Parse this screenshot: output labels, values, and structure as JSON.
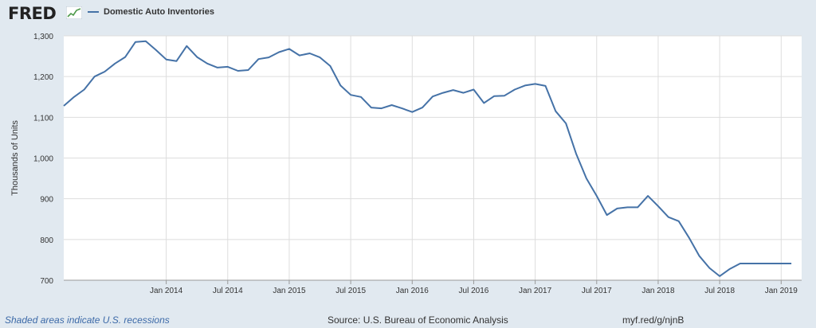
{
  "header": {
    "logo_text": "FRED",
    "logo_icon": "fred-chart-icon"
  },
  "chart_data": {
    "type": "line",
    "title": "",
    "xlabel": "",
    "ylabel": "Thousands of Units",
    "ylim": [
      700,
      1300
    ],
    "yticks": [
      700,
      800,
      900,
      1000,
      1100,
      1200,
      1300
    ],
    "ytick_labels": [
      "700",
      "800",
      "900",
      "1,000",
      "1,100",
      "1,200",
      "1,300"
    ],
    "xlim": [
      "2013-03",
      "2019-03"
    ],
    "xticks": [
      "2014-01",
      "2014-07",
      "2015-01",
      "2015-07",
      "2016-01",
      "2016-07",
      "2017-01",
      "2017-07",
      "2018-01",
      "2018-07",
      "2019-01"
    ],
    "xtick_labels": [
      "Jan 2014",
      "Jul 2014",
      "Jan 2015",
      "Jul 2015",
      "Jan 2016",
      "Jul 2016",
      "Jan 2017",
      "Jul 2017",
      "Jan 2018",
      "Jul 2018",
      "Jan 2019"
    ],
    "grid": true,
    "legend_position": "top-left",
    "colors": {
      "line": "#4572a7",
      "plot_background": "#ffffff",
      "page_background": "#e1e9f0",
      "grid": "#dddddd"
    },
    "series": [
      {
        "name": "Domestic Auto Inventories",
        "x": [
          "2013-03",
          "2013-04",
          "2013-05",
          "2013-06",
          "2013-07",
          "2013-08",
          "2013-09",
          "2013-10",
          "2013-11",
          "2013-12",
          "2014-01",
          "2014-02",
          "2014-03",
          "2014-04",
          "2014-05",
          "2014-06",
          "2014-07",
          "2014-08",
          "2014-09",
          "2014-10",
          "2014-11",
          "2014-12",
          "2015-01",
          "2015-02",
          "2015-03",
          "2015-04",
          "2015-05",
          "2015-06",
          "2015-07",
          "2015-08",
          "2015-09",
          "2015-10",
          "2015-11",
          "2015-12",
          "2016-01",
          "2016-02",
          "2016-03",
          "2016-04",
          "2016-05",
          "2016-06",
          "2016-07",
          "2016-08",
          "2016-09",
          "2016-10",
          "2016-11",
          "2016-12",
          "2017-01",
          "2017-02",
          "2017-03",
          "2017-04",
          "2017-05",
          "2017-06",
          "2017-07",
          "2017-08",
          "2017-09",
          "2017-10",
          "2017-11",
          "2017-12",
          "2018-01",
          "2018-02",
          "2018-03",
          "2018-04",
          "2018-05",
          "2018-06",
          "2018-07",
          "2018-08",
          "2018-09",
          "2018-10",
          "2018-11",
          "2018-12",
          "2019-01",
          "2019-02"
        ],
        "values": [
          1128,
          1150,
          1168,
          1200,
          1212,
          1232,
          1248,
          1285,
          1287,
          1265,
          1242,
          1238,
          1275,
          1248,
          1232,
          1222,
          1224,
          1214,
          1216,
          1243,
          1247,
          1260,
          1268,
          1252,
          1257,
          1247,
          1226,
          1178,
          1155,
          1150,
          1124,
          1122,
          1130,
          1122,
          1113,
          1124,
          1151,
          1160,
          1167,
          1160,
          1168,
          1135,
          1152,
          1153,
          1168,
          1178,
          1182,
          1177,
          1115,
          1085,
          1010,
          950,
          907,
          860,
          876,
          879,
          879,
          907,
          882,
          855,
          845,
          805,
          760,
          730,
          710,
          728,
          741,
          741,
          741,
          741,
          741,
          741
        ],
        "values_note_hidden": true
      }
    ]
  },
  "footer": {
    "recession_note": "Shaded areas indicate U.S. recessions",
    "source": "Source: U.S. Bureau of Economic Analysis",
    "link": "myf.red/g/njnB"
  }
}
